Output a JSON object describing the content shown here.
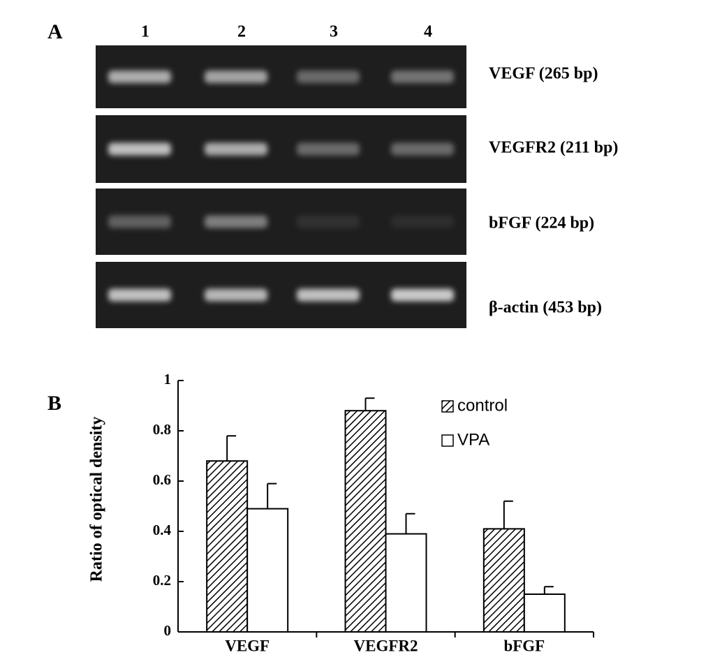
{
  "panel_a": {
    "label": "A",
    "lanes": [
      "1",
      "2",
      "3",
      "4"
    ],
    "bands": [
      "VEGF (265 bp)",
      "VEGFR2 (211 bp)",
      "bFGF (224 bp)",
      "β-actin (453 bp)"
    ]
  },
  "chart_data": {
    "type": "bar",
    "panel_label": "B",
    "ylabel": "Ratio of optical density",
    "categories": [
      "VEGF",
      "VEGFR2",
      "bFGF"
    ],
    "series": [
      {
        "name": "control",
        "color": "#ffffff",
        "pattern": "hatch",
        "values": [
          0.68,
          0.88,
          0.41
        ],
        "errors": [
          0.1,
          0.05,
          0.11
        ]
      },
      {
        "name": "VPA",
        "color": "#ffffff",
        "values": [
          0.49,
          0.39,
          0.15
        ],
        "errors": [
          0.1,
          0.08,
          0.03
        ]
      }
    ],
    "ylim": [
      0,
      1
    ],
    "yticks": [
      0,
      0.2,
      0.4,
      0.6,
      0.8,
      1
    ]
  }
}
